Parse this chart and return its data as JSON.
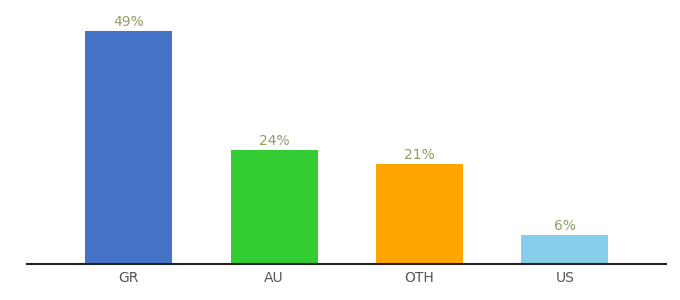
{
  "categories": [
    "GR",
    "AU",
    "OTH",
    "US"
  ],
  "values": [
    49,
    24,
    21,
    6
  ],
  "bar_colors": [
    "#4472C4",
    "#33CC33",
    "#FFA500",
    "#87CEEB"
  ],
  "label_color": "#999966",
  "labels": [
    "49%",
    "24%",
    "21%",
    "6%"
  ],
  "ylim": [
    0,
    53
  ],
  "background_color": "#ffffff",
  "label_fontsize": 10,
  "xtick_fontsize": 10,
  "bar_width": 0.6
}
